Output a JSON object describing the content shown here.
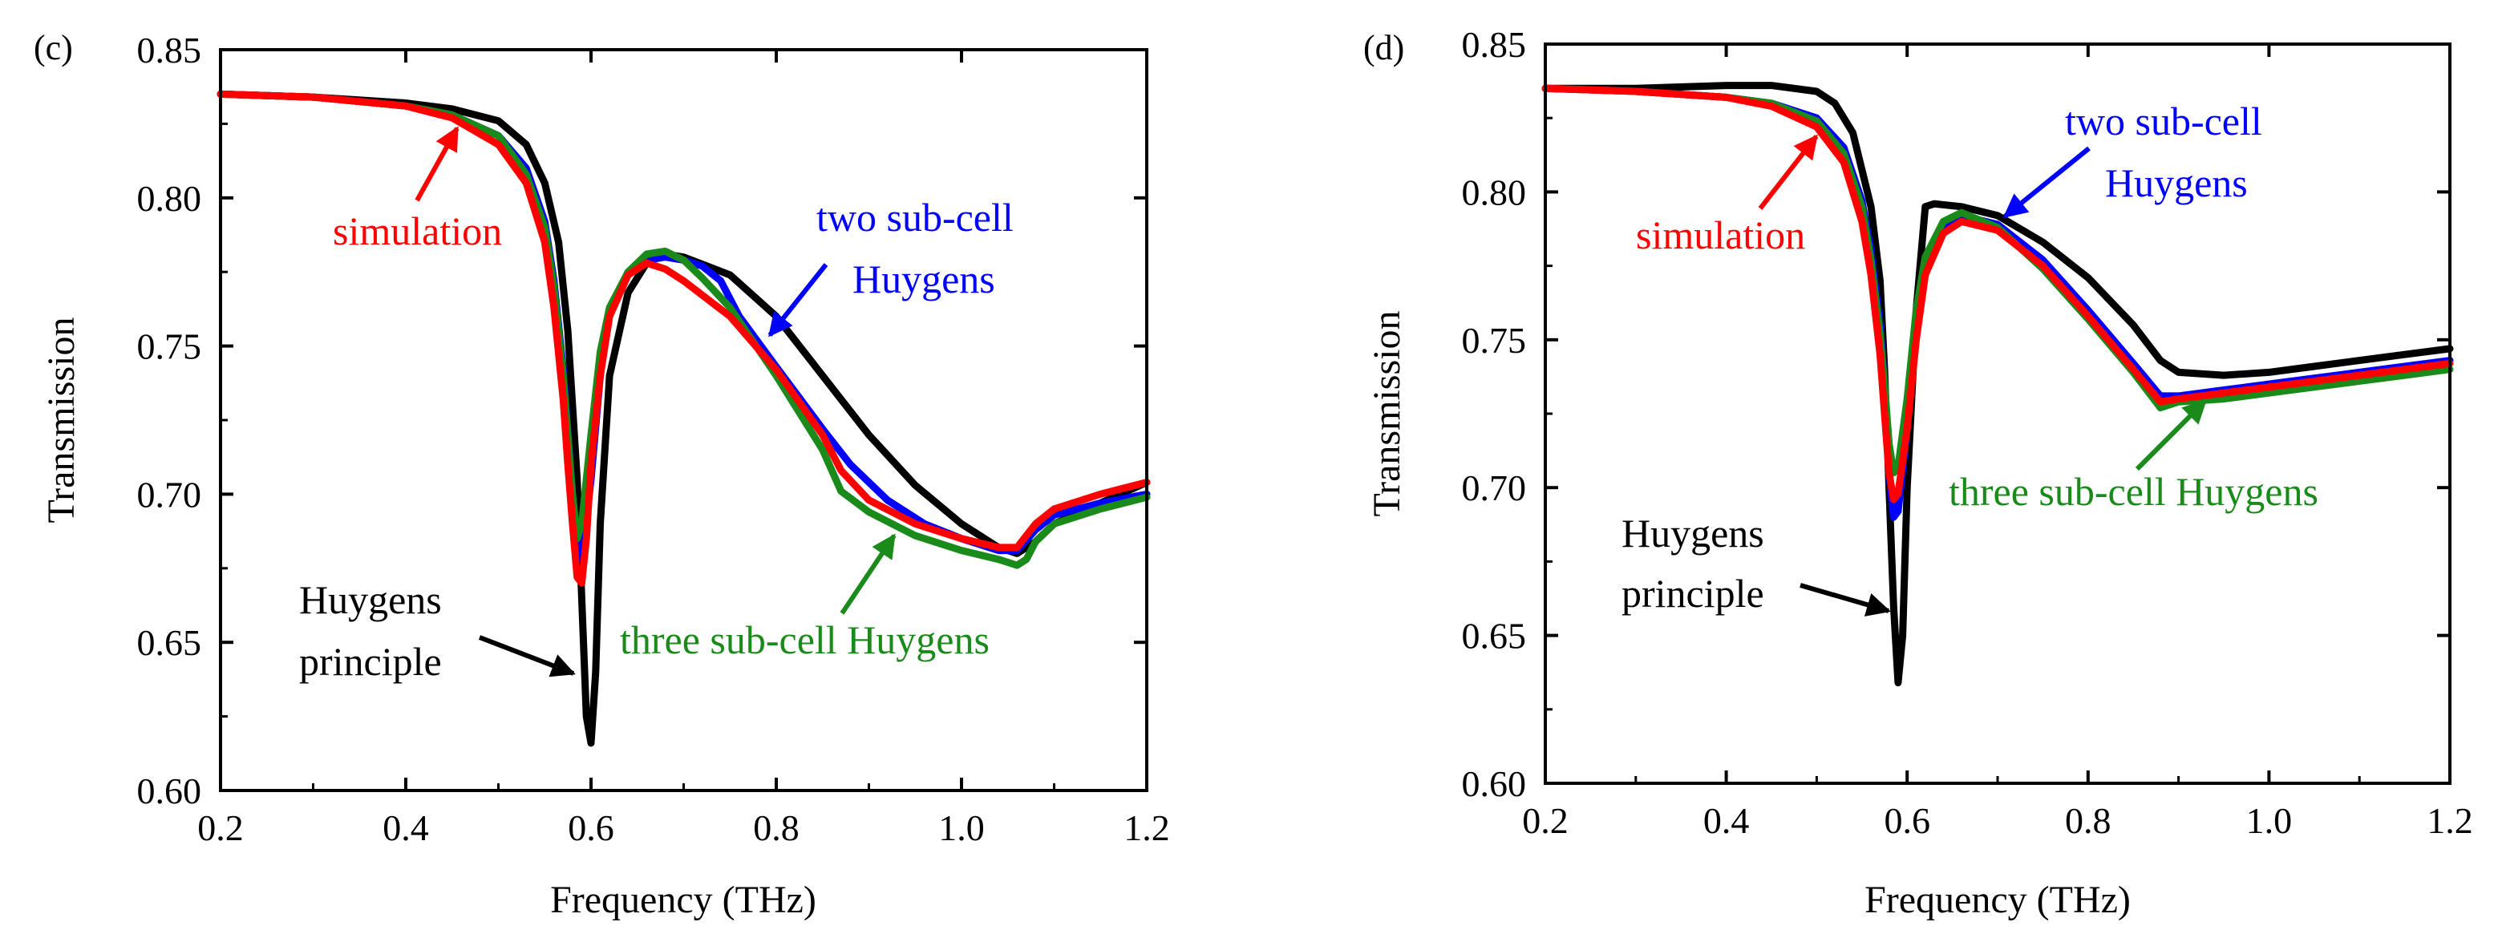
{
  "chart_data": [
    {
      "type": "line",
      "panel_label": "(c)",
      "xlabel": "Frequency (THz)",
      "ylabel": "Transmission",
      "xlim": [
        0.2,
        1.2
      ],
      "ylim": [
        0.6,
        0.85
      ],
      "x_ticks": [
        0.2,
        0.4,
        0.6,
        0.8,
        1.0,
        1.2
      ],
      "x_tick_labels": [
        "0.2",
        "0.4",
        "0.6",
        "0.8",
        "1.0",
        "1.2"
      ],
      "y_ticks": [
        0.6,
        0.65,
        0.7,
        0.75,
        0.8,
        0.85
      ],
      "y_tick_labels": [
        "0.60",
        "0.65",
        "0.70",
        "0.75",
        "0.80",
        "0.85"
      ],
      "series": [
        {
          "name": "Huygens principle",
          "color": "#000000",
          "x": [
            0.2,
            0.3,
            0.4,
            0.45,
            0.5,
            0.53,
            0.55,
            0.565,
            0.575,
            0.585,
            0.59,
            0.595,
            0.6,
            0.605,
            0.61,
            0.62,
            0.64,
            0.66,
            0.68,
            0.7,
            0.75,
            0.8,
            0.85,
            0.9,
            0.95,
            1.0,
            1.04,
            1.06,
            1.08,
            1.1,
            1.15,
            1.2
          ],
          "y": [
            0.835,
            0.834,
            0.832,
            0.83,
            0.826,
            0.818,
            0.805,
            0.785,
            0.755,
            0.705,
            0.665,
            0.625,
            0.616,
            0.64,
            0.69,
            0.74,
            0.768,
            0.778,
            0.781,
            0.78,
            0.774,
            0.76,
            0.74,
            0.72,
            0.703,
            0.69,
            0.682,
            0.68,
            0.684,
            0.69,
            0.697,
            0.704
          ]
        },
        {
          "name": "two sub-cell Huygens",
          "color": "#0000ff",
          "x": [
            0.2,
            0.3,
            0.4,
            0.45,
            0.5,
            0.53,
            0.55,
            0.56,
            0.57,
            0.58,
            0.585,
            0.59,
            0.6,
            0.61,
            0.62,
            0.64,
            0.66,
            0.68,
            0.7,
            0.72,
            0.74,
            0.76,
            0.8,
            0.85,
            0.88,
            0.92,
            0.96,
            1.0,
            1.04,
            1.06,
            1.08,
            1.1,
            1.15,
            1.2
          ],
          "y": [
            0.835,
            0.834,
            0.831,
            0.828,
            0.821,
            0.81,
            0.792,
            0.772,
            0.742,
            0.7,
            0.68,
            0.678,
            0.705,
            0.74,
            0.762,
            0.775,
            0.779,
            0.78,
            0.779,
            0.777,
            0.772,
            0.76,
            0.743,
            0.722,
            0.71,
            0.698,
            0.69,
            0.685,
            0.681,
            0.681,
            0.688,
            0.693,
            0.697,
            0.7
          ]
        },
        {
          "name": "three sub-cell Huygens",
          "color": "#1a8a1a",
          "x": [
            0.2,
            0.3,
            0.4,
            0.45,
            0.5,
            0.53,
            0.55,
            0.56,
            0.57,
            0.58,
            0.585,
            0.59,
            0.6,
            0.61,
            0.62,
            0.64,
            0.66,
            0.68,
            0.7,
            0.72,
            0.75,
            0.8,
            0.85,
            0.87,
            0.9,
            0.95,
            1.0,
            1.04,
            1.06,
            1.07,
            1.08,
            1.1,
            1.15,
            1.2
          ],
          "y": [
            0.835,
            0.834,
            0.831,
            0.828,
            0.821,
            0.808,
            0.79,
            0.77,
            0.74,
            0.7,
            0.685,
            0.69,
            0.72,
            0.748,
            0.763,
            0.775,
            0.781,
            0.782,
            0.779,
            0.773,
            0.763,
            0.74,
            0.715,
            0.701,
            0.694,
            0.686,
            0.681,
            0.678,
            0.676,
            0.678,
            0.684,
            0.69,
            0.695,
            0.699
          ]
        },
        {
          "name": "simulation",
          "color": "#ff0000",
          "x": [
            0.2,
            0.3,
            0.4,
            0.45,
            0.5,
            0.53,
            0.55,
            0.56,
            0.57,
            0.575,
            0.58,
            0.585,
            0.59,
            0.595,
            0.6,
            0.61,
            0.62,
            0.64,
            0.66,
            0.68,
            0.7,
            0.75,
            0.8,
            0.85,
            0.87,
            0.9,
            0.95,
            1.0,
            1.04,
            1.06,
            1.08,
            1.1,
            1.15,
            1.2
          ],
          "y": [
            0.835,
            0.834,
            0.831,
            0.827,
            0.818,
            0.805,
            0.785,
            0.763,
            0.732,
            0.71,
            0.69,
            0.672,
            0.67,
            0.685,
            0.71,
            0.74,
            0.76,
            0.774,
            0.778,
            0.776,
            0.772,
            0.76,
            0.742,
            0.72,
            0.708,
            0.698,
            0.69,
            0.685,
            0.682,
            0.682,
            0.69,
            0.695,
            0.7,
            0.704
          ]
        }
      ],
      "annotations": [
        {
          "text": "simulation",
          "color": "#ff0000"
        },
        {
          "text": "two sub-cell",
          "text2": "Huygens",
          "color": "#0000ff"
        },
        {
          "text": "three sub-cell Huygens",
          "color": "#1a8a1a"
        },
        {
          "text": "Huygens",
          "text2": "principle",
          "color": "#000000"
        }
      ]
    },
    {
      "type": "line",
      "panel_label": "(d)",
      "xlabel": "Frequency (THz)",
      "ylabel": "Transmission",
      "xlim": [
        0.2,
        1.2
      ],
      "ylim": [
        0.6,
        0.85
      ],
      "x_ticks": [
        0.2,
        0.4,
        0.6,
        0.8,
        1.0,
        1.2
      ],
      "x_tick_labels": [
        "0.2",
        "0.4",
        "0.6",
        "0.8",
        "1.0",
        "1.2"
      ],
      "y_ticks": [
        0.6,
        0.65,
        0.7,
        0.75,
        0.8,
        0.85
      ],
      "y_tick_labels": [
        "0.60",
        "0.65",
        "0.70",
        "0.75",
        "0.80",
        "0.85"
      ],
      "series": [
        {
          "name": "Huygens principle",
          "color": "#000000",
          "x": [
            0.2,
            0.3,
            0.4,
            0.45,
            0.5,
            0.52,
            0.54,
            0.56,
            0.57,
            0.575,
            0.58,
            0.585,
            0.59,
            0.595,
            0.6,
            0.61,
            0.62,
            0.63,
            0.66,
            0.7,
            0.75,
            0.8,
            0.85,
            0.88,
            0.9,
            0.95,
            1.0,
            1.05,
            1.1,
            1.15,
            1.2
          ],
          "y": [
            0.835,
            0.835,
            0.836,
            0.836,
            0.834,
            0.83,
            0.82,
            0.795,
            0.77,
            0.74,
            0.7,
            0.66,
            0.634,
            0.65,
            0.7,
            0.76,
            0.795,
            0.796,
            0.795,
            0.792,
            0.783,
            0.771,
            0.755,
            0.743,
            0.739,
            0.738,
            0.739,
            0.741,
            0.743,
            0.745,
            0.747
          ]
        },
        {
          "name": "two sub-cell Huygens",
          "color": "#0000ff",
          "x": [
            0.2,
            0.3,
            0.4,
            0.45,
            0.5,
            0.53,
            0.55,
            0.56,
            0.57,
            0.575,
            0.58,
            0.585,
            0.59,
            0.6,
            0.61,
            0.62,
            0.64,
            0.66,
            0.7,
            0.75,
            0.8,
            0.85,
            0.88,
            0.9,
            0.95,
            1.0,
            1.05,
            1.1,
            1.15,
            1.2
          ],
          "y": [
            0.835,
            0.834,
            0.832,
            0.83,
            0.825,
            0.815,
            0.797,
            0.78,
            0.755,
            0.735,
            0.705,
            0.69,
            0.692,
            0.72,
            0.755,
            0.775,
            0.788,
            0.792,
            0.789,
            0.777,
            0.76,
            0.742,
            0.731,
            0.731,
            0.733,
            0.735,
            0.737,
            0.739,
            0.741,
            0.743
          ]
        },
        {
          "name": "three sub-cell Huygens",
          "color": "#1a8a1a",
          "x": [
            0.2,
            0.3,
            0.4,
            0.45,
            0.5,
            0.53,
            0.55,
            0.56,
            0.57,
            0.575,
            0.58,
            0.585,
            0.59,
            0.6,
            0.61,
            0.62,
            0.64,
            0.66,
            0.7,
            0.75,
            0.8,
            0.85,
            0.88,
            0.9,
            0.95,
            1.0,
            1.05,
            1.1,
            1.15,
            1.2
          ],
          "y": [
            0.835,
            0.834,
            0.832,
            0.83,
            0.824,
            0.813,
            0.795,
            0.777,
            0.752,
            0.735,
            0.715,
            0.705,
            0.707,
            0.73,
            0.76,
            0.778,
            0.79,
            0.793,
            0.788,
            0.774,
            0.757,
            0.739,
            0.727,
            0.729,
            0.73,
            0.732,
            0.734,
            0.736,
            0.738,
            0.74
          ]
        },
        {
          "name": "simulation",
          "color": "#ff0000",
          "x": [
            0.2,
            0.3,
            0.4,
            0.45,
            0.5,
            0.53,
            0.55,
            0.56,
            0.57,
            0.575,
            0.58,
            0.585,
            0.59,
            0.6,
            0.61,
            0.62,
            0.64,
            0.66,
            0.7,
            0.75,
            0.8,
            0.85,
            0.88,
            0.9,
            0.95,
            1.0,
            1.05,
            1.1,
            1.15,
            1.2
          ],
          "y": [
            0.835,
            0.834,
            0.832,
            0.829,
            0.822,
            0.81,
            0.79,
            0.772,
            0.745,
            0.725,
            0.705,
            0.696,
            0.698,
            0.72,
            0.75,
            0.772,
            0.786,
            0.79,
            0.787,
            0.775,
            0.758,
            0.74,
            0.729,
            0.73,
            0.732,
            0.734,
            0.736,
            0.738,
            0.74,
            0.742
          ]
        }
      ],
      "annotations": [
        {
          "text": "simulation",
          "color": "#ff0000"
        },
        {
          "text": "two sub-cell",
          "text2": "Huygens",
          "color": "#0000ff"
        },
        {
          "text": "three sub-cell Huygens",
          "color": "#1a8a1a"
        },
        {
          "text": "Huygens",
          "text2": "principle",
          "color": "#000000"
        }
      ]
    }
  ]
}
